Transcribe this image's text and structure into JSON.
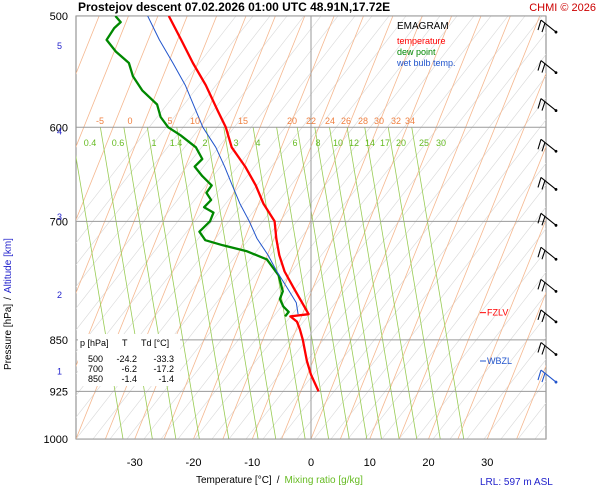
{
  "header": {
    "title": "Prostejov   descent   07.02.2026 01:00 UTC   48.91N,17.72E",
    "copyright": "CHMI © 2026"
  },
  "legend": {
    "title": "EMAGRAM",
    "items": [
      {
        "label": "temperature",
        "color": "#ff0000"
      },
      {
        "label": "dew point",
        "color": "#008800"
      },
      {
        "label": "wet bulb temp.",
        "color": "#2255cc"
      }
    ]
  },
  "axes": {
    "ylabel_pressure": "Pressure [hPa]",
    "ylabel_sep": "/",
    "ylabel_altitude": "Altitude [km]",
    "xlabel_temp": "Temperature [°C]",
    "xlabel_sep": "/",
    "xlabel_mix": "Mixing ratio [g/kg]"
  },
  "table": {
    "headers": [
      "p [hPa]",
      "T",
      "Td [°C]"
    ],
    "rows": [
      [
        "500",
        "-24.2",
        "-33.3"
      ],
      [
        "700",
        "-6.2",
        "-17.2"
      ],
      [
        "850",
        "-1.4",
        "-1.4"
      ]
    ]
  },
  "levels": {
    "fzlv": {
      "label": "FZLV",
      "color": "#ff0000",
      "pressure": 813
    },
    "wbzl": {
      "label": "WBZL",
      "color": "#2255cc",
      "pressure": 880
    }
  },
  "lrl": "LRL: 597 m ASL",
  "chart_data": {
    "type": "line",
    "x_label": "Temperature [°C]",
    "y_label": "Pressure [hPa]",
    "x_range": [
      -40,
      40
    ],
    "y_range": [
      1000,
      500
    ],
    "y_scale": "log",
    "pressure_ticks": [
      500,
      600,
      700,
      850,
      925,
      1000
    ],
    "temp_ticks": [
      -30,
      -20,
      -10,
      0,
      10,
      20,
      30
    ],
    "altitude_ticks": [
      {
        "km": "1",
        "p": 895
      },
      {
        "km": "2",
        "p": 790
      },
      {
        "km": "3",
        "p": 695
      },
      {
        "km": "4",
        "p": 604
      },
      {
        "km": "5",
        "p": 525
      }
    ],
    "isotherm_labels": [
      "-5",
      "0",
      "5",
      "10",
      "15",
      "20",
      "22",
      "24",
      "26",
      "28",
      "30",
      "32",
      "34"
    ],
    "mixing_ratio_labels": [
      "0.4",
      "0.6",
      "1",
      "1.4",
      "2",
      "3",
      "4",
      "6",
      "8",
      "10",
      "12",
      "14",
      "17",
      "20",
      "25",
      "30"
    ],
    "series": [
      {
        "name": "temperature",
        "color": "#ff0000",
        "points": [
          [
            925,
            1.3
          ],
          [
            900,
            0
          ],
          [
            880,
            -0.7
          ],
          [
            850,
            -1.4
          ],
          [
            835,
            -1.9
          ],
          [
            825,
            -2.4
          ],
          [
            818,
            -3.5
          ],
          [
            815,
            -0.4
          ],
          [
            800,
            -1.5
          ],
          [
            780,
            -3
          ],
          [
            760,
            -4.5
          ],
          [
            740,
            -5.4
          ],
          [
            720,
            -5.9
          ],
          [
            700,
            -6.2
          ],
          [
            680,
            -8.1
          ],
          [
            660,
            -9.4
          ],
          [
            640,
            -11.2
          ],
          [
            620,
            -13.5
          ],
          [
            600,
            -14.5
          ],
          [
            585,
            -15.8
          ],
          [
            560,
            -17.9
          ],
          [
            540,
            -20.1
          ],
          [
            520,
            -22.1
          ],
          [
            500,
            -24.2
          ]
        ]
      },
      {
        "name": "dew point",
        "color": "#008800",
        "points": [
          [
            818,
            -4.4
          ],
          [
            812,
            -3.8
          ],
          [
            805,
            -4.7
          ],
          [
            795,
            -5.3
          ],
          [
            785,
            -4.8
          ],
          [
            765,
            -5.5
          ],
          [
            745,
            -7.5
          ],
          [
            735,
            -11
          ],
          [
            728,
            -15
          ],
          [
            722,
            -18
          ],
          [
            712,
            -19
          ],
          [
            700,
            -17.2
          ],
          [
            690,
            -16.6
          ],
          [
            684,
            -18.2
          ],
          [
            676,
            -17
          ],
          [
            668,
            -17.8
          ],
          [
            660,
            -16.9
          ],
          [
            650,
            -18.5
          ],
          [
            640,
            -19.8
          ],
          [
            632,
            -18.5
          ],
          [
            620,
            -19.6
          ],
          [
            608,
            -22.2
          ],
          [
            600,
            -24.3
          ],
          [
            590,
            -25.6
          ],
          [
            578,
            -26.2
          ],
          [
            565,
            -28.7
          ],
          [
            552,
            -30.3
          ],
          [
            540,
            -31
          ],
          [
            530,
            -33.2
          ],
          [
            520,
            -34.8
          ],
          [
            510,
            -33.5
          ],
          [
            505,
            -32.4
          ],
          [
            500,
            -33.3
          ]
        ]
      },
      {
        "name": "wet bulb temp.",
        "color": "#2255cc",
        "points": [
          [
            815,
            -2.2
          ],
          [
            800,
            -2.5
          ],
          [
            780,
            -4.1
          ],
          [
            760,
            -5.8
          ],
          [
            740,
            -7.3
          ],
          [
            720,
            -9.2
          ],
          [
            700,
            -10.5
          ],
          [
            680,
            -12.1
          ],
          [
            660,
            -13.4
          ],
          [
            640,
            -14.7
          ],
          [
            620,
            -16.2
          ],
          [
            600,
            -18.4
          ],
          [
            585,
            -19.5
          ],
          [
            560,
            -21.4
          ],
          [
            540,
            -23.5
          ],
          [
            520,
            -25.8
          ],
          [
            500,
            -27.8
          ]
        ]
      }
    ],
    "wind_pressures": [
      510,
      545,
      580,
      620,
      660,
      700,
      740,
      780,
      820,
      865,
      905
    ]
  }
}
